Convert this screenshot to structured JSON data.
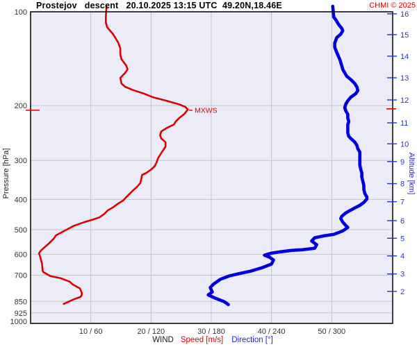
{
  "header": {
    "title": "Prostejov   descent   20.10.2025 13:15 UTC  49.20N,18.46E",
    "copyright": "CHMI © 2025"
  },
  "legend": {
    "wind": "WIND",
    "speed": "Speed [m/s]",
    "direction": "Direction [°]"
  },
  "colors": {
    "speed_curve": "#dd0000",
    "direction_curve": "#0000dd",
    "altitude_axis": "#2233cc",
    "plot_bg": "#ececf9",
    "grid": "#c3c3cb",
    "border": "#000000",
    "tick_text": "#333333",
    "mxws": "#dd0000"
  },
  "chart_data": {
    "type": "line",
    "title": "Prostejov descent 20.10.2025 13:15 UTC 49.20N,18.46E",
    "x_axis": {
      "group_label": "WIND",
      "series_labels": [
        "Speed [m/s]",
        "Direction [°]"
      ],
      "speed_range_ms": [
        0,
        60.2
      ],
      "direction_range_deg": [
        0,
        361
      ],
      "ticks": [
        {
          "speed": 10,
          "direction": 60,
          "label": "10 / 60"
        },
        {
          "speed": 20,
          "direction": 120,
          "label": "20 / 120"
        },
        {
          "speed": 30,
          "direction": 180,
          "label": "30 / 180"
        },
        {
          "speed": 40,
          "direction": 240,
          "label": "40 / 240"
        },
        {
          "speed": 50,
          "direction": 300,
          "label": "50 / 300"
        }
      ],
      "grid": true
    },
    "y_axis_left": {
      "label": "Pressure [hPa]",
      "scale": "log",
      "range": [
        100,
        1000
      ],
      "ticks": [
        100,
        200,
        300,
        400,
        500,
        600,
        700,
        850,
        925,
        1000
      ],
      "gridline_ticks": [
        200,
        300,
        400,
        500,
        600,
        700,
        850,
        925
      ],
      "grid": true
    },
    "y_axis_right": {
      "label": "Altitude [km]",
      "ticks": [
        {
          "km": 16,
          "hpa": 101.5
        },
        {
          "km": 15,
          "hpa": 118.4
        },
        {
          "km": 14,
          "hpa": 138.8
        },
        {
          "km": 13,
          "hpa": 162.8
        },
        {
          "km": 12,
          "hpa": 191.8
        },
        {
          "km": 11,
          "hpa": 227.2
        },
        {
          "km": 10,
          "hpa": 265.3
        },
        {
          "km": 9,
          "hpa": 302.4
        },
        {
          "km": 8,
          "hpa": 355.9
        },
        {
          "km": 7,
          "hpa": 406.9
        },
        {
          "km": 6,
          "hpa": 467.9
        },
        {
          "km": 5,
          "hpa": 532.9
        },
        {
          "km": 4,
          "hpa": 607.2
        },
        {
          "km": 3,
          "hpa": 693.8
        },
        {
          "km": 2,
          "hpa": 789.1
        }
      ]
    },
    "annotation": {
      "label": "MXWS",
      "pressure_hpa": 207,
      "max_speed_ms": 26.1
    },
    "series": [
      {
        "name": "wind-speed",
        "unit": "m/s",
        "color": "#dd0000",
        "stroke_width": 2.6,
        "points_speed_pressure": [
          [
            12.6,
            96
          ],
          [
            12.5,
            104
          ],
          [
            12.5,
            108
          ],
          [
            12.7,
            112
          ],
          [
            13.7,
            118
          ],
          [
            14.5,
            125
          ],
          [
            14.9,
            131
          ],
          [
            14.9,
            137
          ],
          [
            15.1,
            142
          ],
          [
            15.9,
            149
          ],
          [
            16.1,
            153
          ],
          [
            15.7,
            157
          ],
          [
            14.9,
            163
          ],
          [
            15.1,
            170
          ],
          [
            15.7,
            174
          ],
          [
            16.9,
            178
          ],
          [
            18.8,
            183
          ],
          [
            20.3,
            188
          ],
          [
            22.6,
            193
          ],
          [
            24.6,
            198
          ],
          [
            25.7,
            202
          ],
          [
            26.1,
            206
          ],
          [
            25.5,
            213
          ],
          [
            24.7,
            219
          ],
          [
            24.1,
            225
          ],
          [
            23.8,
            230
          ],
          [
            22.6,
            236
          ],
          [
            21.7,
            242
          ],
          [
            21.5,
            249
          ],
          [
            21.7,
            255
          ],
          [
            22.4,
            262
          ],
          [
            22.4,
            271
          ],
          [
            21.8,
            282
          ],
          [
            21.2,
            294
          ],
          [
            20.9,
            305
          ],
          [
            20.6,
            313
          ],
          [
            20.0,
            321
          ],
          [
            19.2,
            329
          ],
          [
            18.5,
            334
          ],
          [
            18.4,
            343
          ],
          [
            18.2,
            355
          ],
          [
            17.7,
            364
          ],
          [
            17.1,
            373
          ],
          [
            16.5,
            383
          ],
          [
            15.9,
            393
          ],
          [
            15.4,
            403
          ],
          [
            14.5,
            413
          ],
          [
            13.7,
            424
          ],
          [
            12.8,
            434
          ],
          [
            12.2,
            446
          ],
          [
            11.4,
            457
          ],
          [
            10.4,
            464
          ],
          [
            8.8,
            474
          ],
          [
            7.2,
            486
          ],
          [
            5.9,
            501
          ],
          [
            4.2,
            522
          ],
          [
            3.9,
            533
          ],
          [
            3.0,
            555
          ],
          [
            1.7,
            584
          ],
          [
            1.4,
            596
          ],
          [
            1.6,
            612
          ],
          [
            1.9,
            643
          ],
          [
            2.0,
            677
          ],
          [
            2.1,
            684
          ],
          [
            3.3,
            705
          ],
          [
            5.0,
            716
          ],
          [
            6.5,
            735
          ],
          [
            7.0,
            750
          ],
          [
            7.6,
            761
          ],
          [
            8.2,
            773
          ],
          [
            8.5,
            797
          ],
          [
            8.5,
            810
          ],
          [
            8.3,
            822
          ],
          [
            7.3,
            835
          ],
          [
            5.5,
            866
          ]
        ]
      },
      {
        "name": "wind-direction",
        "unit": "deg",
        "color": "#0000dd",
        "stroke_width": 4.6,
        "points_direction_pressure": [
          [
            301,
            96
          ],
          [
            302,
            104
          ],
          [
            304,
            106
          ],
          [
            307,
            110
          ],
          [
            310,
            113
          ],
          [
            311,
            115
          ],
          [
            309,
            118
          ],
          [
            305,
            121
          ],
          [
            303,
            126
          ],
          [
            303,
            130
          ],
          [
            305,
            135
          ],
          [
            308,
            142
          ],
          [
            310,
            149
          ],
          [
            311,
            153
          ],
          [
            313,
            157
          ],
          [
            315,
            161
          ],
          [
            319,
            165
          ],
          [
            323,
            170
          ],
          [
            325,
            174
          ],
          [
            326,
            179
          ],
          [
            324,
            183
          ],
          [
            319,
            188
          ],
          [
            316,
            193
          ],
          [
            314,
            198
          ],
          [
            313,
            203
          ],
          [
            314,
            208
          ],
          [
            316,
            213
          ],
          [
            316,
            219
          ],
          [
            317,
            225
          ],
          [
            316,
            230
          ],
          [
            316,
            238
          ],
          [
            316,
            245
          ],
          [
            317,
            251
          ],
          [
            319,
            255
          ],
          [
            323,
            262
          ],
          [
            325,
            268
          ],
          [
            326,
            275
          ],
          [
            328,
            282
          ],
          [
            328,
            291
          ],
          [
            328,
            300
          ],
          [
            328,
            310
          ],
          [
            329,
            321
          ],
          [
            330,
            329
          ],
          [
            330,
            339
          ],
          [
            331,
            350
          ],
          [
            332,
            361
          ],
          [
            332,
            372
          ],
          [
            333,
            383
          ],
          [
            335,
            393
          ],
          [
            335,
            399
          ],
          [
            332,
            409
          ],
          [
            328,
            418
          ],
          [
            323,
            426
          ],
          [
            319,
            433
          ],
          [
            314,
            442
          ],
          [
            310,
            453
          ],
          [
            309,
            461
          ],
          [
            311,
            473
          ],
          [
            314,
            485
          ],
          [
            316,
            492
          ],
          [
            311,
            505
          ],
          [
            302,
            518
          ],
          [
            293,
            523
          ],
          [
            283,
            531
          ],
          [
            280,
            544
          ],
          [
            285,
            559
          ],
          [
            283,
            574
          ],
          [
            271,
            580
          ],
          [
            260,
            583
          ],
          [
            249,
            589
          ],
          [
            240,
            595
          ],
          [
            233,
            604
          ],
          [
            238,
            613
          ],
          [
            242,
            626
          ],
          [
            240,
            645
          ],
          [
            231,
            662
          ],
          [
            219,
            680
          ],
          [
            207,
            693
          ],
          [
            198,
            704
          ],
          [
            189,
            722
          ],
          [
            182,
            749
          ],
          [
            179,
            767
          ],
          [
            181,
            793
          ],
          [
            177,
            810
          ],
          [
            184,
            830
          ],
          [
            193,
            852
          ],
          [
            197,
            870
          ]
        ]
      }
    ],
    "legend_position": "bottom-center"
  }
}
